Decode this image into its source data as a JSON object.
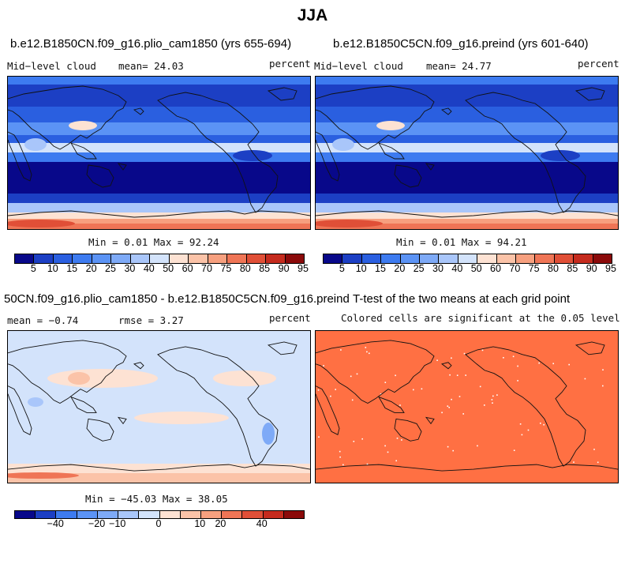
{
  "title": "JJA",
  "panels": [
    {
      "title": "b.e12.B1850CN.f09_g16.plio_cam1850 (yrs 655-694)",
      "left_label": "Mid−level cloud",
      "mean_text": "mean=  24.03",
      "units": "percent",
      "minmax": "Min =   0.01 Max =  92.24"
    },
    {
      "title": "b.e12.B1850C5CN.f09_g16.preind (yrs 601-640)",
      "left_label": "Mid−level cloud",
      "mean_text": "mean=  24.77",
      "units": "percent",
      "minmax": "Min =   0.01 Max =  94.21"
    },
    {
      "title": "50CN.f09_g16.plio_cam1850 - b.e12.B1850C5CN.f09_g16.preind",
      "left_label": "mean =  −0.74",
      "mean_text": "rmse =   3.27",
      "units": "percent",
      "minmax": "Min = −45.03 Max =  38.05"
    },
    {
      "title": "T-test of the two means at each grid point",
      "subtitle": "Colored cells are significant at the 0.05 level",
      "fill_color": "#ff7043"
    }
  ],
  "chart_data": [
    {
      "type": "heatmap",
      "title": "b.e12.B1850CN.f09_g16.plio_cam1850 (yrs 655-694)",
      "field": "Mid−level cloud",
      "units": "percent",
      "mean": 24.03,
      "min": 0.01,
      "max": 92.24,
      "colorbar_levels": [
        5,
        10,
        15,
        20,
        25,
        30,
        40,
        50,
        60,
        70,
        75,
        80,
        85,
        90,
        95
      ]
    },
    {
      "type": "heatmap",
      "title": "b.e12.B1850C5CN.f09_g16.preind (yrs 601-640)",
      "field": "Mid−level cloud",
      "units": "percent",
      "mean": 24.77,
      "min": 0.01,
      "max": 94.21,
      "colorbar_levels": [
        5,
        10,
        15,
        20,
        25,
        30,
        40,
        50,
        60,
        70,
        75,
        80,
        85,
        90,
        95
      ]
    },
    {
      "type": "heatmap",
      "title": "50CN.f09_g16.plio_cam1850 - b.e12.B1850C5CN.f09_g16.preind",
      "units": "percent",
      "mean": -0.74,
      "rmse": 3.27,
      "min": -45.03,
      "max": 38.05,
      "colorbar_labels": [
        "−40",
        "−20",
        "−10",
        "0",
        "10",
        "20",
        "40"
      ]
    },
    {
      "type": "heatmap",
      "title": "T-test of the two means at each grid point",
      "subtitle": "Colored cells are significant at the 0.05 level"
    }
  ],
  "colors": {
    "abs_palette": [
      "#08088a",
      "#1c3fc4",
      "#2a5fe0",
      "#3d7bf0",
      "#5b93f5",
      "#7eaaf7",
      "#a9c6fa",
      "#d3e3fb",
      "#fde2d3",
      "#fbc3a8",
      "#f7a07f",
      "#ef7556",
      "#e04f37",
      "#c52b1e",
      "#8b0a0a"
    ],
    "diff_palette": [
      "#08088a",
      "#1c3fc4",
      "#3d7bf0",
      "#5b93f5",
      "#7eaaf7",
      "#a9c6fa",
      "#d3e3fb",
      "#fde2d3",
      "#fbc3a8",
      "#f7a07f",
      "#ef7556",
      "#e04f37",
      "#c52b1e",
      "#8b0a0a"
    ],
    "ttest": "#ff7043",
    "coast": "#111111"
  }
}
